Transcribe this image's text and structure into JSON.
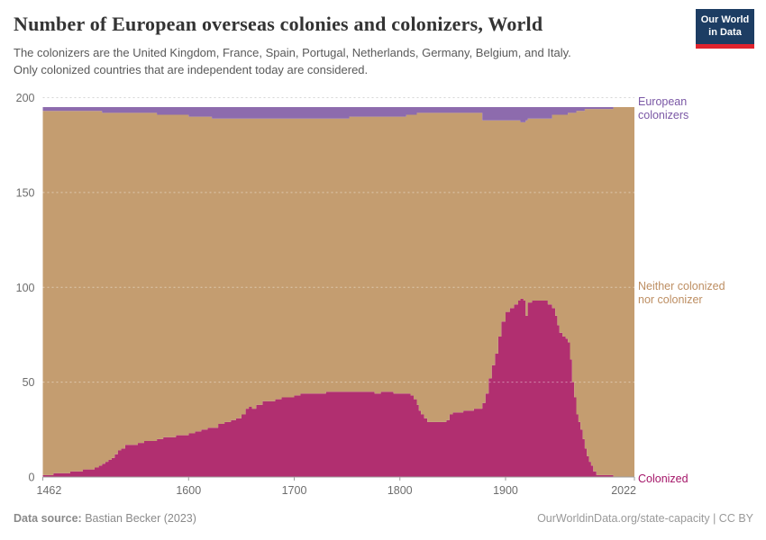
{
  "header": {
    "title": "Number of European overseas colonies and colonizers, World",
    "subtitle_lines": [
      "The colonizers are the United Kingdom, France, Spain, Portugal, Netherlands, Germany, Belgium, and Italy.",
      "Only colonized countries that are independent today are considered."
    ],
    "logo": {
      "line1": "Our World",
      "line2": "in Data",
      "bg_color": "#1d3d63",
      "bar_color": "#e0232d"
    }
  },
  "footer": {
    "source_label": "Data source:",
    "source_value": " Bastian Becker (2023)",
    "right_text": "OurWorldinData.org/state-capacity | CC BY"
  },
  "chart_data": {
    "type": "area",
    "stacked": true,
    "title": "Number of European overseas colonies and colonizers, World",
    "x_range": [
      1462,
      2022
    ],
    "y_range": [
      0,
      200
    ],
    "x_label_ticks": [
      1462,
      1600,
      1700,
      1800,
      1900,
      2022
    ],
    "y_ticks": [
      0,
      50,
      100,
      150,
      200
    ],
    "grid": true,
    "legend_position": "right-edge-labels",
    "total_countries": 195,
    "point_format": [
      "year",
      "colonized",
      "european_colonizers"
    ],
    "neither_series_rule": "total_countries - colonized - european_colonizers",
    "series": [
      {
        "name": "Colonized",
        "color": "#b12f70",
        "label_color": "#a41568"
      },
      {
        "name": "Neither colonized nor colonizer",
        "color": "#c49d70",
        "label_color": "#bd8e62"
      },
      {
        "name": "European colonizers",
        "color": "#8d6bad",
        "label_color": "#7a57a5"
      }
    ],
    "points": [
      [
        1462,
        1,
        2
      ],
      [
        1468,
        1,
        2
      ],
      [
        1472,
        2,
        2
      ],
      [
        1480,
        2,
        2
      ],
      [
        1488,
        3,
        2
      ],
      [
        1496,
        3,
        2
      ],
      [
        1500,
        4,
        2
      ],
      [
        1506,
        4,
        2
      ],
      [
        1511,
        5,
        2
      ],
      [
        1515,
        6,
        2
      ],
      [
        1518,
        7,
        3
      ],
      [
        1521,
        8,
        3
      ],
      [
        1524,
        9,
        3
      ],
      [
        1527,
        10,
        3
      ],
      [
        1530,
        12,
        3
      ],
      [
        1533,
        14,
        3
      ],
      [
        1536,
        15,
        3
      ],
      [
        1540,
        17,
        3
      ],
      [
        1546,
        17,
        3
      ],
      [
        1552,
        18,
        3
      ],
      [
        1558,
        19,
        3
      ],
      [
        1564,
        19,
        3
      ],
      [
        1570,
        20,
        4
      ],
      [
        1576,
        21,
        4
      ],
      [
        1582,
        21,
        4
      ],
      [
        1588,
        22,
        4
      ],
      [
        1594,
        22,
        4
      ],
      [
        1600,
        23,
        5
      ],
      [
        1606,
        24,
        5
      ],
      [
        1612,
        25,
        5
      ],
      [
        1618,
        26,
        5
      ],
      [
        1622,
        26,
        6
      ],
      [
        1628,
        28,
        6
      ],
      [
        1634,
        29,
        6
      ],
      [
        1640,
        30,
        6
      ],
      [
        1645,
        31,
        6
      ],
      [
        1650,
        33,
        6
      ],
      [
        1654,
        36,
        6
      ],
      [
        1657,
        37,
        6
      ],
      [
        1660,
        36,
        6
      ],
      [
        1664,
        38,
        6
      ],
      [
        1670,
        40,
        6
      ],
      [
        1676,
        40,
        6
      ],
      [
        1682,
        41,
        6
      ],
      [
        1688,
        42,
        6
      ],
      [
        1694,
        42,
        6
      ],
      [
        1700,
        43,
        6
      ],
      [
        1706,
        44,
        6
      ],
      [
        1712,
        44,
        6
      ],
      [
        1718,
        44,
        6
      ],
      [
        1724,
        44,
        6
      ],
      [
        1730,
        45,
        6
      ],
      [
        1736,
        45,
        6
      ],
      [
        1742,
        45,
        6
      ],
      [
        1748,
        45,
        6
      ],
      [
        1752,
        45,
        5
      ],
      [
        1758,
        45,
        5
      ],
      [
        1764,
        45,
        5
      ],
      [
        1770,
        45,
        5
      ],
      [
        1776,
        44,
        5
      ],
      [
        1782,
        45,
        5
      ],
      [
        1788,
        45,
        5
      ],
      [
        1794,
        44,
        5
      ],
      [
        1800,
        44,
        5
      ],
      [
        1806,
        44,
        4
      ],
      [
        1810,
        43,
        4
      ],
      [
        1813,
        41,
        4
      ],
      [
        1816,
        38,
        3
      ],
      [
        1818,
        35,
        3
      ],
      [
        1820,
        33,
        3
      ],
      [
        1823,
        31,
        3
      ],
      [
        1826,
        29,
        3
      ],
      [
        1830,
        29,
        3
      ],
      [
        1835,
        29,
        3
      ],
      [
        1840,
        29,
        3
      ],
      [
        1844,
        30,
        3
      ],
      [
        1847,
        33,
        3
      ],
      [
        1850,
        34,
        3
      ],
      [
        1855,
        34,
        3
      ],
      [
        1860,
        35,
        3
      ],
      [
        1865,
        35,
        3
      ],
      [
        1870,
        36,
        3
      ],
      [
        1874,
        36,
        3
      ],
      [
        1878,
        39,
        7
      ],
      [
        1881,
        44,
        7
      ],
      [
        1884,
        52,
        7
      ],
      [
        1887,
        59,
        7
      ],
      [
        1890,
        65,
        7
      ],
      [
        1893,
        74,
        7
      ],
      [
        1896,
        82,
        7
      ],
      [
        1900,
        87,
        7
      ],
      [
        1904,
        89,
        7
      ],
      [
        1908,
        91,
        7
      ],
      [
        1912,
        93,
        7
      ],
      [
        1914,
        94,
        8
      ],
      [
        1917,
        93,
        8
      ],
      [
        1919,
        85,
        7
      ],
      [
        1921,
        92,
        6
      ],
      [
        1925,
        93,
        6
      ],
      [
        1930,
        93,
        6
      ],
      [
        1935,
        93,
        6
      ],
      [
        1940,
        91,
        6
      ],
      [
        1944,
        89,
        4
      ],
      [
        1947,
        85,
        4
      ],
      [
        1949,
        80,
        4
      ],
      [
        1951,
        76,
        4
      ],
      [
        1954,
        74,
        4
      ],
      [
        1957,
        73,
        4
      ],
      [
        1959,
        71,
        3
      ],
      [
        1961,
        62,
        3
      ],
      [
        1963,
        50,
        3
      ],
      [
        1965,
        42,
        3
      ],
      [
        1967,
        33,
        2
      ],
      [
        1969,
        29,
        2
      ],
      [
        1971,
        25,
        2
      ],
      [
        1973,
        20,
        2
      ],
      [
        1975,
        15,
        1
      ],
      [
        1977,
        11,
        1
      ],
      [
        1979,
        8,
        1
      ],
      [
        1981,
        6,
        1
      ],
      [
        1983,
        3,
        1
      ],
      [
        1986,
        1,
        1
      ],
      [
        1990,
        1,
        1
      ],
      [
        1995,
        1,
        1
      ],
      [
        1999,
        1,
        1
      ],
      [
        2002,
        0,
        0
      ],
      [
        2010,
        0,
        0
      ],
      [
        2022,
        0,
        0
      ]
    ]
  }
}
